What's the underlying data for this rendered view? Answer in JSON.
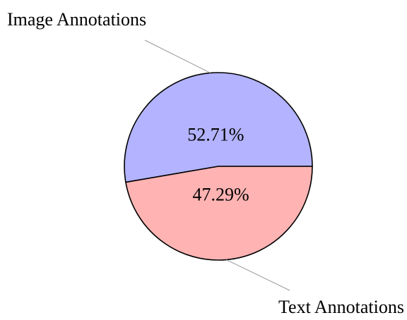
{
  "chart_data": {
    "type": "pie",
    "categories": [
      "Image Annotations",
      "Text Annotations"
    ],
    "values": [
      52.71,
      47.29
    ],
    "value_labels": [
      "52.71%",
      "47.29%"
    ],
    "colors": [
      "#b3b3ff",
      "#ffb3b3"
    ]
  }
}
